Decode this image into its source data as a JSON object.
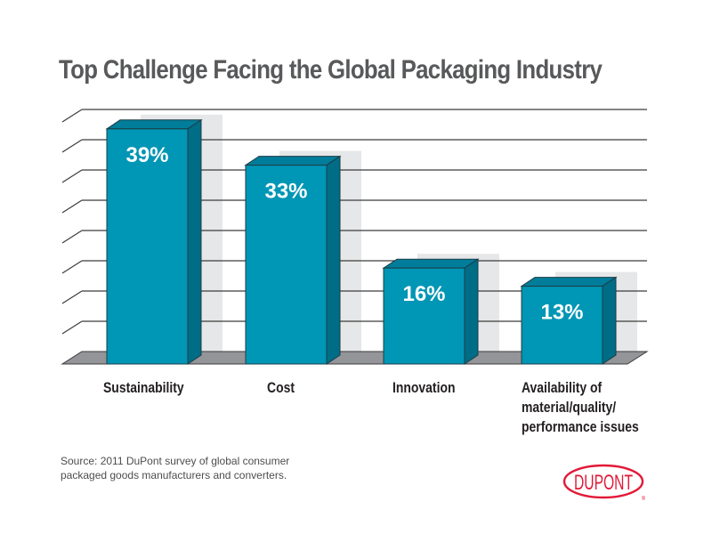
{
  "chart_data": {
    "type": "bar",
    "title": "Top Challenge Facing the Global Packaging Industry",
    "categories": [
      "Sustainability",
      "Cost",
      "Innovation",
      "Availability of material/quality/ performance issues"
    ],
    "category_label_lines": [
      [
        "Sustainability"
      ],
      [
        "Cost"
      ],
      [
        "Innovation"
      ],
      [
        "Availability of",
        "material/quality/",
        "performance issues"
      ]
    ],
    "values": [
      39,
      33,
      16,
      13
    ],
    "data_labels": [
      "39%",
      "33%",
      "16%",
      "13%"
    ],
    "xlabel": "",
    "ylabel": "",
    "ylim": [
      0,
      40
    ],
    "y_tick_count": 8,
    "y_tick_labels_shown": false,
    "grid": true,
    "legend": "none",
    "style": "3d-bar",
    "colors": {
      "bar_front": "#0096b5",
      "bar_side": "#006d87",
      "bar_top": "#007d9a",
      "shadow": "#e6e7e8",
      "floor": "#939598",
      "grid": "#3c3c3c"
    }
  },
  "source": {
    "lines": [
      "Source: 2011 DuPont survey of global consumer",
      "packaged goods manufacturers and converters."
    ]
  },
  "logo": {
    "text": "DUPONT",
    "registered": "®",
    "color": "#e31937"
  }
}
